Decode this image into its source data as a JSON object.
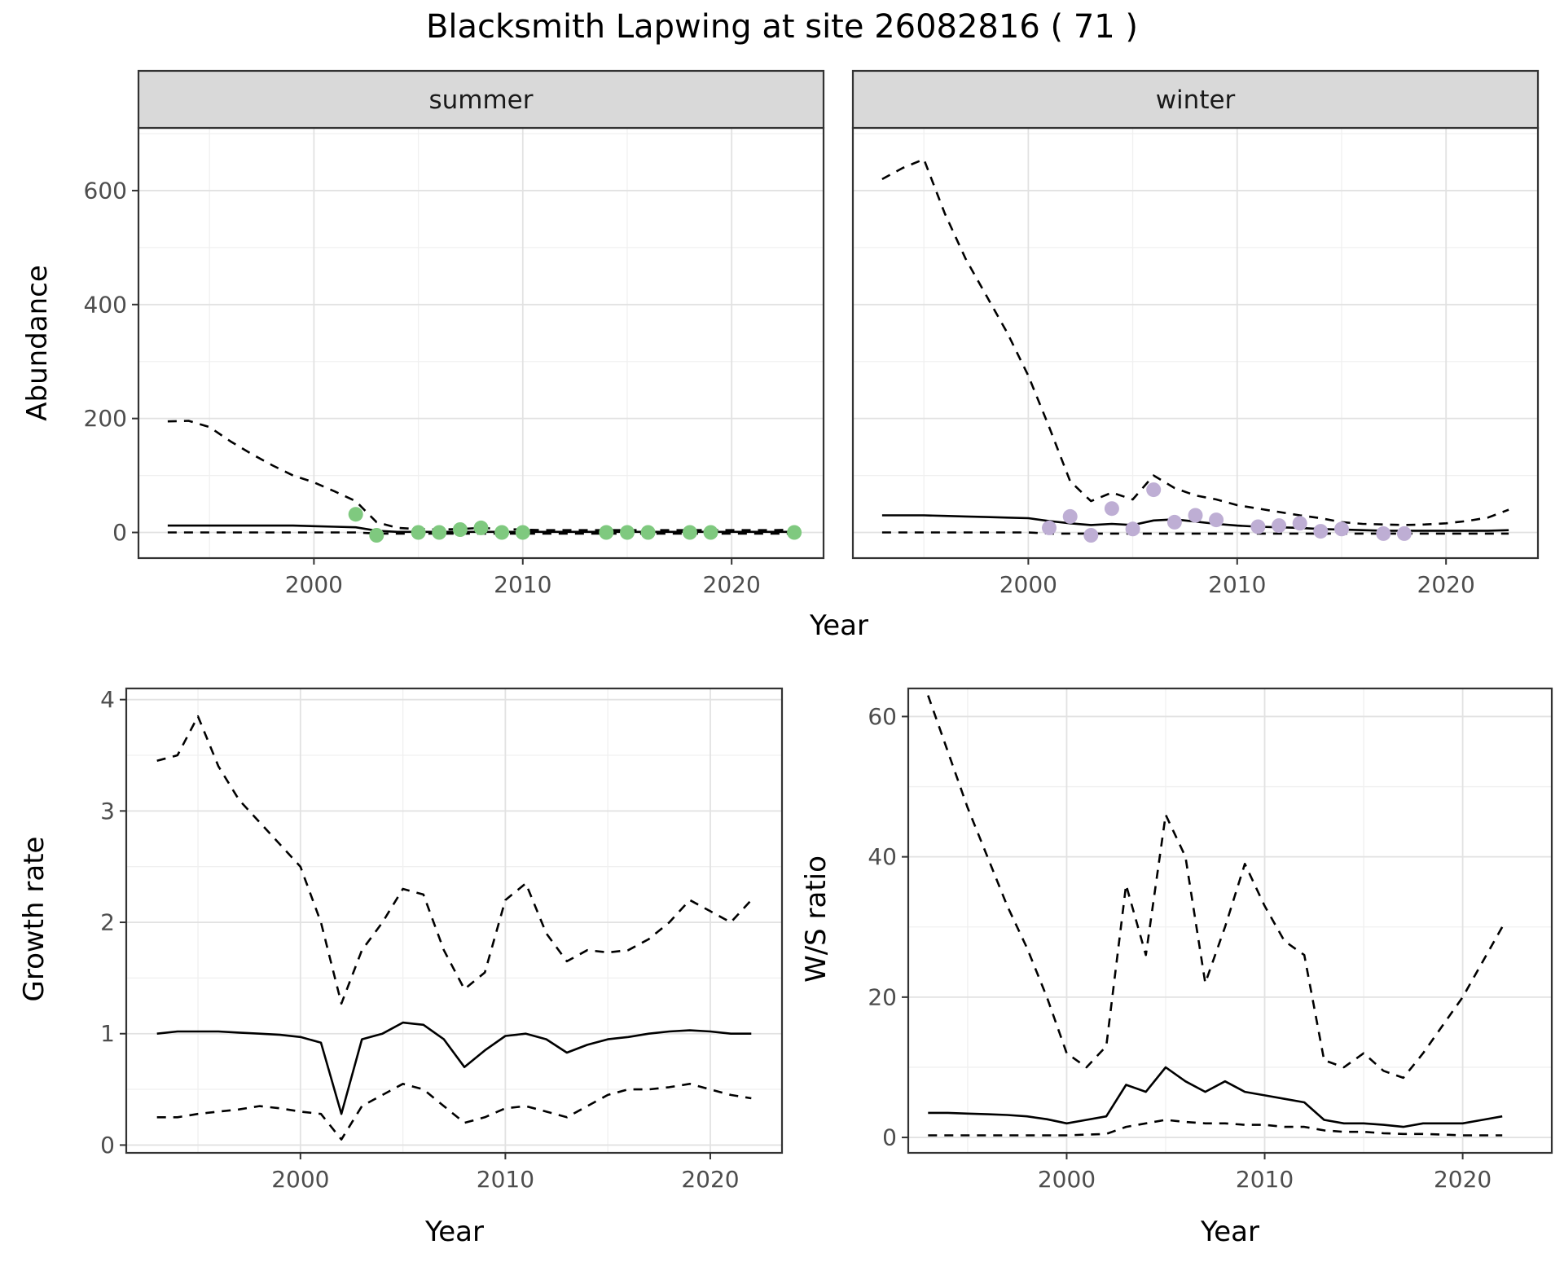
{
  "title": "Blacksmith Lapwing at site 26082816 ( 71 )",
  "axis": {
    "top_y_label": "Abundance",
    "top_x_label": "Year",
    "growth_y_label": "Growth rate",
    "growth_x_label": "Year",
    "ws_y_label": "W/S ratio",
    "ws_x_label": "Year"
  },
  "style": {
    "line_color": "#000000",
    "summer_point_color": "#7fc97f",
    "winter_point_color": "#beaed4",
    "panel_border": "#333333",
    "strip_bg": "#d9d9d9",
    "strip_text_color": "#1a1a1a",
    "grid_major": "#e2e2e2",
    "grid_minor": "#f0f0f0",
    "tick_label_color": "#4d4d4d"
  },
  "chart_data": [
    {
      "id": "abundance-summer",
      "type": "line",
      "facet_label": "summer",
      "xlabel": "Year",
      "ylabel": "Abundance",
      "xlim": [
        1991.6,
        2024.4
      ],
      "ylim": [
        -45,
        710
      ],
      "xticks": [
        2000,
        2010,
        2020
      ],
      "yticks": [
        0,
        200,
        400,
        600
      ],
      "xticks_minor": [
        1995,
        2005,
        2015
      ],
      "yticks_minor": [
        100,
        300,
        500,
        700
      ],
      "series": [
        {
          "name": "upper-ci",
          "style": "dashed",
          "x": [
            1993,
            1994,
            1995,
            1996,
            1997,
            1998,
            1999,
            2000,
            2001,
            2002,
            2003,
            2004,
            2005,
            2006,
            2007,
            2008,
            2009,
            2010,
            2011,
            2012,
            2013,
            2014,
            2015,
            2016,
            2017,
            2018,
            2019,
            2020,
            2021,
            2022,
            2023
          ],
          "y": [
            195,
            196,
            185,
            160,
            138,
            118,
            100,
            88,
            72,
            55,
            18,
            8,
            6,
            5,
            6,
            8,
            6,
            5,
            4,
            4,
            4,
            4,
            4,
            4,
            4,
            4,
            4,
            4,
            4,
            4,
            5
          ]
        },
        {
          "name": "estimate",
          "style": "solid",
          "x": [
            1993,
            1994,
            1995,
            1996,
            1997,
            1998,
            1999,
            2000,
            2001,
            2002,
            2003,
            2004,
            2005,
            2006,
            2007,
            2008,
            2009,
            2010,
            2011,
            2012,
            2013,
            2014,
            2015,
            2016,
            2017,
            2018,
            2019,
            2020,
            2021,
            2022,
            2023
          ],
          "y": [
            12,
            12,
            12,
            12,
            12,
            12,
            12,
            11,
            10,
            9,
            3,
            1,
            1,
            1,
            1,
            1,
            1,
            1,
            1,
            1,
            1,
            1,
            1,
            1,
            1,
            1,
            1,
            1,
            1,
            1,
            1
          ]
        },
        {
          "name": "lower-ci",
          "style": "dashed",
          "x": [
            1993,
            1994,
            1995,
            1996,
            1997,
            1998,
            1999,
            2000,
            2001,
            2002,
            2003,
            2004,
            2005,
            2006,
            2007,
            2008,
            2009,
            2010,
            2011,
            2012,
            2013,
            2014,
            2015,
            2016,
            2017,
            2018,
            2019,
            2020,
            2021,
            2022,
            2023
          ],
          "y": [
            0,
            0,
            0,
            0,
            0,
            0,
            0,
            0,
            0,
            0,
            -2,
            -2,
            -2,
            -2,
            -2,
            -2,
            -2,
            -2,
            -2,
            -2,
            -2,
            -2,
            -2,
            -2,
            -2,
            -2,
            -2,
            -2,
            -2,
            -2,
            -2
          ]
        },
        {
          "name": "observed",
          "style": "points",
          "color": "#7fc97f",
          "x": [
            2002,
            2003,
            2005,
            2006,
            2007,
            2008,
            2009,
            2010,
            2014,
            2015,
            2016,
            2018,
            2019,
            2023
          ],
          "y": [
            32,
            -5,
            0,
            0,
            5,
            8,
            0,
            0,
            0,
            0,
            0,
            0,
            0,
            0
          ]
        }
      ]
    },
    {
      "id": "abundance-winter",
      "type": "line",
      "facet_label": "winter",
      "xlabel": "Year",
      "ylabel": "Abundance",
      "xlim": [
        1991.6,
        2024.4
      ],
      "ylim": [
        -45,
        710
      ],
      "xticks": [
        2000,
        2010,
        2020
      ],
      "yticks": [
        0,
        200,
        400,
        600
      ],
      "xticks_minor": [
        1995,
        2005,
        2015
      ],
      "yticks_minor": [
        100,
        300,
        500,
        700
      ],
      "series": [
        {
          "name": "upper-ci",
          "style": "dashed",
          "x": [
            1993,
            1994,
            1995,
            1996,
            1997,
            1998,
            1999,
            2000,
            2001,
            2002,
            2003,
            2004,
            2005,
            2006,
            2007,
            2008,
            2009,
            2010,
            2011,
            2012,
            2013,
            2014,
            2015,
            2016,
            2017,
            2018,
            2019,
            2020,
            2021,
            2022,
            2023
          ],
          "y": [
            620,
            640,
            655,
            560,
            480,
            415,
            350,
            275,
            185,
            90,
            55,
            70,
            58,
            100,
            78,
            65,
            58,
            48,
            42,
            36,
            30,
            25,
            18,
            15,
            14,
            13,
            14,
            16,
            20,
            26,
            40
          ]
        },
        {
          "name": "estimate",
          "style": "solid",
          "x": [
            1993,
            1994,
            1995,
            1996,
            1997,
            1998,
            1999,
            2000,
            2001,
            2002,
            2003,
            2004,
            2005,
            2006,
            2007,
            2008,
            2009,
            2010,
            2011,
            2012,
            2013,
            2014,
            2015,
            2016,
            2017,
            2018,
            2019,
            2020,
            2021,
            2022,
            2023
          ],
          "y": [
            30,
            30,
            30,
            29,
            28,
            27,
            26,
            25,
            20,
            16,
            13,
            15,
            13,
            21,
            23,
            19,
            15,
            12,
            10,
            9,
            8,
            6,
            5,
            4,
            3,
            3,
            3,
            3,
            3,
            3,
            4
          ]
        },
        {
          "name": "lower-ci",
          "style": "dashed",
          "x": [
            1993,
            1994,
            1995,
            1996,
            1997,
            1998,
            1999,
            2000,
            2001,
            2002,
            2003,
            2004,
            2005,
            2006,
            2007,
            2008,
            2009,
            2010,
            2011,
            2012,
            2013,
            2014,
            2015,
            2016,
            2017,
            2018,
            2019,
            2020,
            2021,
            2022,
            2023
          ],
          "y": [
            0,
            0,
            0,
            0,
            0,
            0,
            0,
            0,
            -2,
            -2,
            -2,
            -2,
            -2,
            -2,
            -2,
            -2,
            -2,
            -2,
            -2,
            -2,
            -2,
            -2,
            -2,
            -2,
            -2,
            -2,
            -2,
            -2,
            -2,
            -2,
            -2
          ]
        },
        {
          "name": "observed",
          "style": "points",
          "color": "#beaed4",
          "x": [
            2001,
            2002,
            2003,
            2004,
            2005,
            2006,
            2007,
            2008,
            2009,
            2011,
            2012,
            2013,
            2014,
            2015,
            2017,
            2018
          ],
          "y": [
            8,
            28,
            -5,
            42,
            6,
            75,
            18,
            30,
            22,
            10,
            12,
            16,
            2,
            6,
            -2,
            -2
          ]
        }
      ]
    },
    {
      "id": "growth-rate",
      "type": "line",
      "facet_label": "",
      "xlabel": "Year",
      "ylabel": "Growth rate",
      "xlim": [
        1991.5,
        2023.5
      ],
      "ylim": [
        -0.07,
        4.1
      ],
      "xticks": [
        2000,
        2010,
        2020
      ],
      "yticks": [
        0,
        1,
        2,
        3,
        4
      ],
      "xticks_minor": [
        1995,
        2005,
        2015
      ],
      "yticks_minor": [
        0.5,
        1.5,
        2.5,
        3.5
      ],
      "series": [
        {
          "name": "upper-ci",
          "style": "dashed",
          "x": [
            1993,
            1994,
            1995,
            1996,
            1997,
            1998,
            1999,
            2000,
            2001,
            2002,
            2003,
            2004,
            2005,
            2006,
            2007,
            2008,
            2009,
            2010,
            2011,
            2012,
            2013,
            2014,
            2015,
            2016,
            2017,
            2018,
            2019,
            2020,
            2021,
            2022
          ],
          "y": [
            3.45,
            3.5,
            3.85,
            3.4,
            3.1,
            2.9,
            2.7,
            2.5,
            2.0,
            1.27,
            1.75,
            2.0,
            2.3,
            2.25,
            1.75,
            1.4,
            1.55,
            2.2,
            2.35,
            1.9,
            1.65,
            1.75,
            1.73,
            1.75,
            1.85,
            2.0,
            2.2,
            2.1,
            2.0,
            2.2
          ]
        },
        {
          "name": "estimate",
          "style": "solid",
          "x": [
            1993,
            1994,
            1995,
            1996,
            1997,
            1998,
            1999,
            2000,
            2001,
            2002,
            2003,
            2004,
            2005,
            2006,
            2007,
            2008,
            2009,
            2010,
            2011,
            2012,
            2013,
            2014,
            2015,
            2016,
            2017,
            2018,
            2019,
            2020,
            2021,
            2022
          ],
          "y": [
            1.0,
            1.02,
            1.02,
            1.02,
            1.01,
            1.0,
            0.99,
            0.97,
            0.92,
            0.28,
            0.95,
            1.0,
            1.1,
            1.08,
            0.95,
            0.7,
            0.85,
            0.98,
            1.0,
            0.95,
            0.83,
            0.9,
            0.95,
            0.97,
            1.0,
            1.02,
            1.03,
            1.02,
            1.0,
            1.0
          ]
        },
        {
          "name": "lower-ci",
          "style": "dashed",
          "x": [
            1993,
            1994,
            1995,
            1996,
            1997,
            1998,
            1999,
            2000,
            2001,
            2002,
            2003,
            2004,
            2005,
            2006,
            2007,
            2008,
            2009,
            2010,
            2011,
            2012,
            2013,
            2014,
            2015,
            2016,
            2017,
            2018,
            2019,
            2020,
            2021,
            2022
          ],
          "y": [
            0.25,
            0.25,
            0.28,
            0.3,
            0.32,
            0.35,
            0.33,
            0.3,
            0.28,
            0.05,
            0.35,
            0.45,
            0.55,
            0.5,
            0.35,
            0.2,
            0.25,
            0.33,
            0.35,
            0.3,
            0.25,
            0.35,
            0.45,
            0.5,
            0.5,
            0.52,
            0.55,
            0.5,
            0.45,
            0.42
          ]
        }
      ]
    },
    {
      "id": "ws-ratio",
      "type": "line",
      "facet_label": "",
      "xlabel": "Year",
      "ylabel": "W/S ratio",
      "xlim": [
        1992,
        2024.5
      ],
      "ylim": [
        -2.2,
        64
      ],
      "xticks": [
        2000,
        2010,
        2020
      ],
      "yticks": [
        0,
        20,
        40,
        60
      ],
      "xticks_minor": [
        1995,
        2005,
        2015
      ],
      "yticks_minor": [
        10,
        30,
        50
      ],
      "series": [
        {
          "name": "upper-ci",
          "style": "dashed",
          "x": [
            1993,
            1994,
            1995,
            1996,
            1997,
            1998,
            1999,
            2000,
            2001,
            2002,
            2003,
            2004,
            2005,
            2006,
            2007,
            2008,
            2009,
            2010,
            2011,
            2012,
            2013,
            2014,
            2015,
            2016,
            2017,
            2018,
            2019,
            2020,
            2021,
            2022
          ],
          "y": [
            63,
            55,
            47,
            40,
            33,
            27,
            20,
            12,
            10,
            13,
            36,
            26,
            46,
            40,
            22,
            30,
            39,
            33,
            28,
            26,
            11,
            10,
            12,
            9.5,
            8.5,
            12,
            16,
            20,
            25,
            30
          ]
        },
        {
          "name": "estimate",
          "style": "solid",
          "x": [
            1993,
            1994,
            1995,
            1996,
            1997,
            1998,
            1999,
            2000,
            2001,
            2002,
            2003,
            2004,
            2005,
            2006,
            2007,
            2008,
            2009,
            2010,
            2011,
            2012,
            2013,
            2014,
            2015,
            2016,
            2017,
            2018,
            2019,
            2020,
            2021,
            2022
          ],
          "y": [
            3.5,
            3.5,
            3.4,
            3.3,
            3.2,
            3.0,
            2.6,
            2.0,
            2.5,
            3.0,
            7.5,
            6.5,
            10,
            8,
            6.5,
            8,
            6.5,
            6,
            5.5,
            5,
            2.5,
            2,
            2,
            1.8,
            1.5,
            2,
            2,
            2,
            2.5,
            3
          ]
        },
        {
          "name": "lower-ci",
          "style": "dashed",
          "x": [
            1993,
            1994,
            1995,
            1996,
            1997,
            1998,
            1999,
            2000,
            2001,
            2002,
            2003,
            2004,
            2005,
            2006,
            2007,
            2008,
            2009,
            2010,
            2011,
            2012,
            2013,
            2014,
            2015,
            2016,
            2017,
            2018,
            2019,
            2020,
            2021,
            2022
          ],
          "y": [
            0.3,
            0.3,
            0.3,
            0.3,
            0.3,
            0.3,
            0.3,
            0.3,
            0.4,
            0.5,
            1.5,
            2,
            2.5,
            2.2,
            2,
            2,
            1.8,
            1.8,
            1.5,
            1.5,
            1,
            0.8,
            0.8,
            0.6,
            0.5,
            0.5,
            0.4,
            0.3,
            0.3,
            0.3
          ]
        }
      ]
    }
  ]
}
